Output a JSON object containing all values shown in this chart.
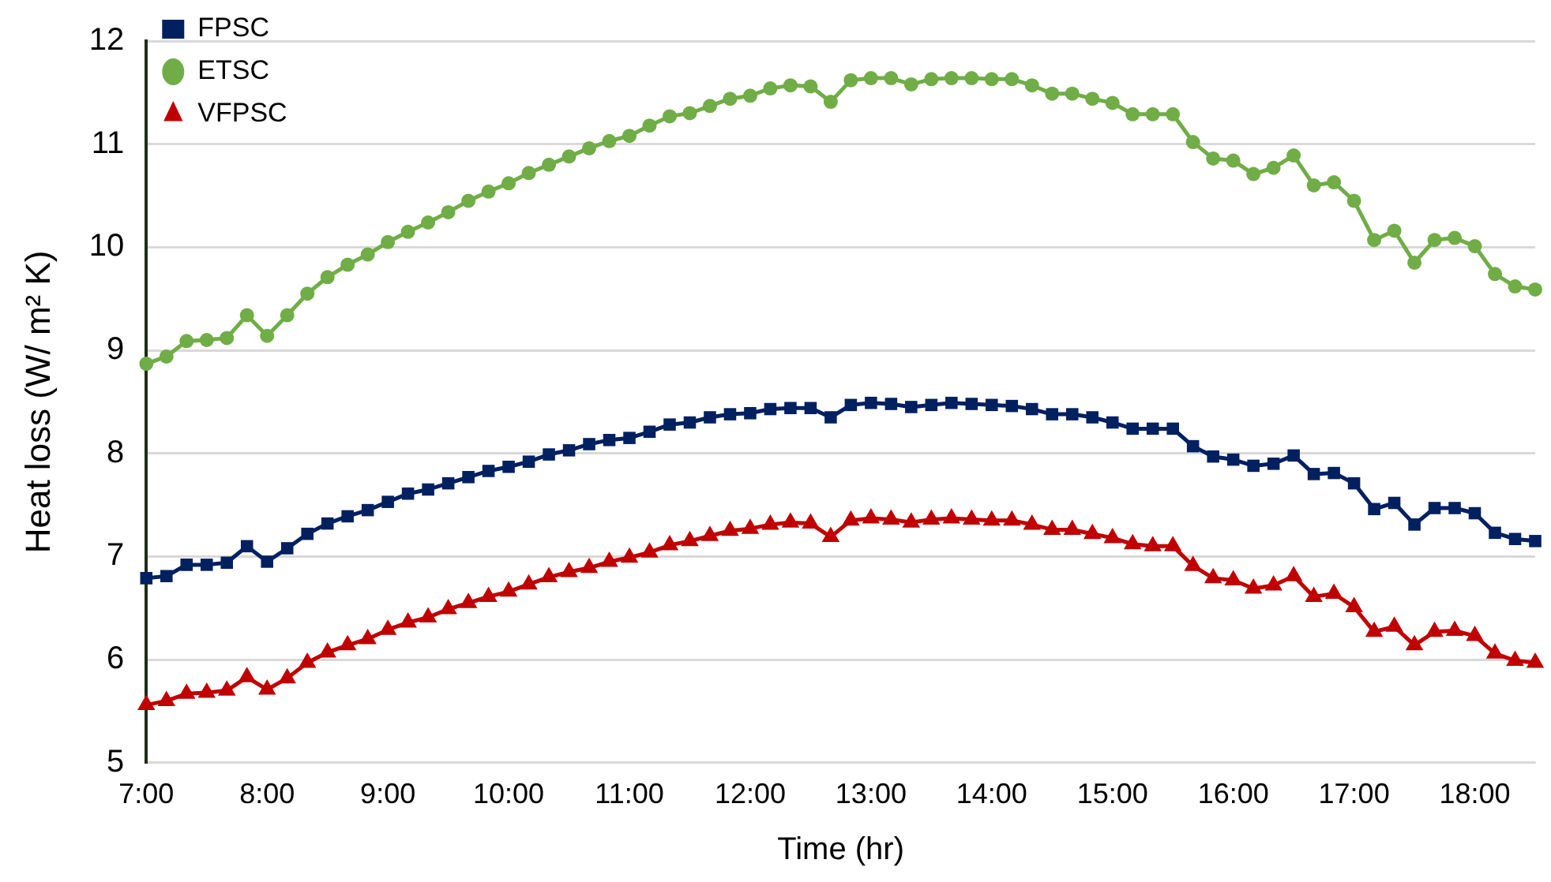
{
  "chart_data": {
    "type": "line",
    "xlabel": "Time (hr)",
    "ylabel": "Heat loss (W/ m² K)",
    "categories": [
      "7:00",
      null,
      null,
      null,
      null,
      null,
      "8:00",
      null,
      null,
      null,
      null,
      null,
      "9:00",
      null,
      null,
      null,
      null,
      null,
      "10:00",
      null,
      null,
      null,
      null,
      null,
      "11:00",
      null,
      null,
      null,
      null,
      null,
      "12:00",
      null,
      null,
      null,
      null,
      null,
      "13:00",
      null,
      null,
      null,
      null,
      null,
      "14:00",
      null,
      null,
      null,
      null,
      null,
      "15:00",
      null,
      null,
      null,
      null,
      null,
      "16:00",
      null,
      null,
      null,
      null,
      null,
      "17:00",
      null,
      null,
      null,
      null,
      null,
      "18:00",
      null,
      null,
      null
    ],
    "series": [
      {
        "name": "FPSC",
        "color": "#002060",
        "marker": "square",
        "values": [
          6.79,
          6.81,
          6.92,
          6.92,
          6.94,
          7.1,
          6.95,
          7.08,
          7.22,
          7.32,
          7.39,
          7.45,
          7.53,
          7.61,
          7.65,
          7.71,
          7.77,
          7.83,
          7.87,
          7.92,
          7.99,
          8.03,
          8.09,
          8.13,
          8.15,
          8.21,
          8.28,
          8.3,
          8.35,
          8.38,
          8.39,
          8.43,
          8.44,
          8.44,
          8.35,
          8.47,
          8.49,
          8.48,
          8.45,
          8.47,
          8.49,
          8.48,
          8.47,
          8.46,
          8.43,
          8.38,
          8.38,
          8.35,
          8.3,
          8.24,
          8.24,
          8.24,
          8.07,
          7.97,
          7.94,
          7.88,
          7.9,
          7.98,
          7.8,
          7.81,
          7.71,
          7.46,
          7.52,
          7.31,
          7.47,
          7.47,
          7.42,
          7.23,
          7.17,
          7.15
        ]
      },
      {
        "name": "ETSC",
        "color": "#70ad47",
        "marker": "circle",
        "values": [
          8.87,
          8.94,
          9.09,
          9.1,
          9.12,
          9.34,
          9.14,
          9.34,
          9.55,
          9.71,
          9.83,
          9.93,
          10.05,
          10.15,
          10.24,
          10.34,
          10.45,
          10.54,
          10.62,
          10.72,
          10.8,
          10.88,
          10.96,
          11.03,
          11.08,
          11.18,
          11.27,
          11.3,
          11.37,
          11.44,
          11.47,
          11.54,
          11.57,
          11.56,
          11.41,
          11.62,
          11.64,
          11.64,
          11.58,
          11.63,
          11.64,
          11.64,
          11.63,
          11.63,
          11.57,
          11.49,
          11.49,
          11.44,
          11.4,
          11.29,
          11.29,
          11.29,
          11.02,
          10.86,
          10.84,
          10.71,
          10.77,
          10.89,
          10.6,
          10.63,
          10.45,
          10.07,
          10.16,
          9.85,
          10.07,
          10.09,
          10.01,
          9.74,
          9.62,
          9.59
        ]
      },
      {
        "name": "VFPSC",
        "color": "#c00000",
        "marker": "triangle",
        "values": [
          5.56,
          5.6,
          5.67,
          5.68,
          5.7,
          5.83,
          5.71,
          5.82,
          5.97,
          6.07,
          6.14,
          6.2,
          6.29,
          6.36,
          6.41,
          6.49,
          6.55,
          6.61,
          6.66,
          6.73,
          6.8,
          6.85,
          6.89,
          6.95,
          6.99,
          7.04,
          7.11,
          7.15,
          7.2,
          7.25,
          7.27,
          7.31,
          7.33,
          7.32,
          7.19,
          7.35,
          7.37,
          7.36,
          7.33,
          7.36,
          7.37,
          7.36,
          7.35,
          7.35,
          7.31,
          7.26,
          7.26,
          7.22,
          7.18,
          7.12,
          7.1,
          7.1,
          6.91,
          6.79,
          6.77,
          6.69,
          6.72,
          6.81,
          6.61,
          6.64,
          6.51,
          6.27,
          6.32,
          6.14,
          6.27,
          6.28,
          6.23,
          6.06,
          5.99,
          5.97
        ]
      }
    ],
    "ylim": [
      5,
      12
    ],
    "yticks": [
      5,
      6,
      7,
      8,
      9,
      10,
      11,
      12
    ],
    "grid": "y",
    "legend": "top left",
    "line_style": "solid"
  }
}
